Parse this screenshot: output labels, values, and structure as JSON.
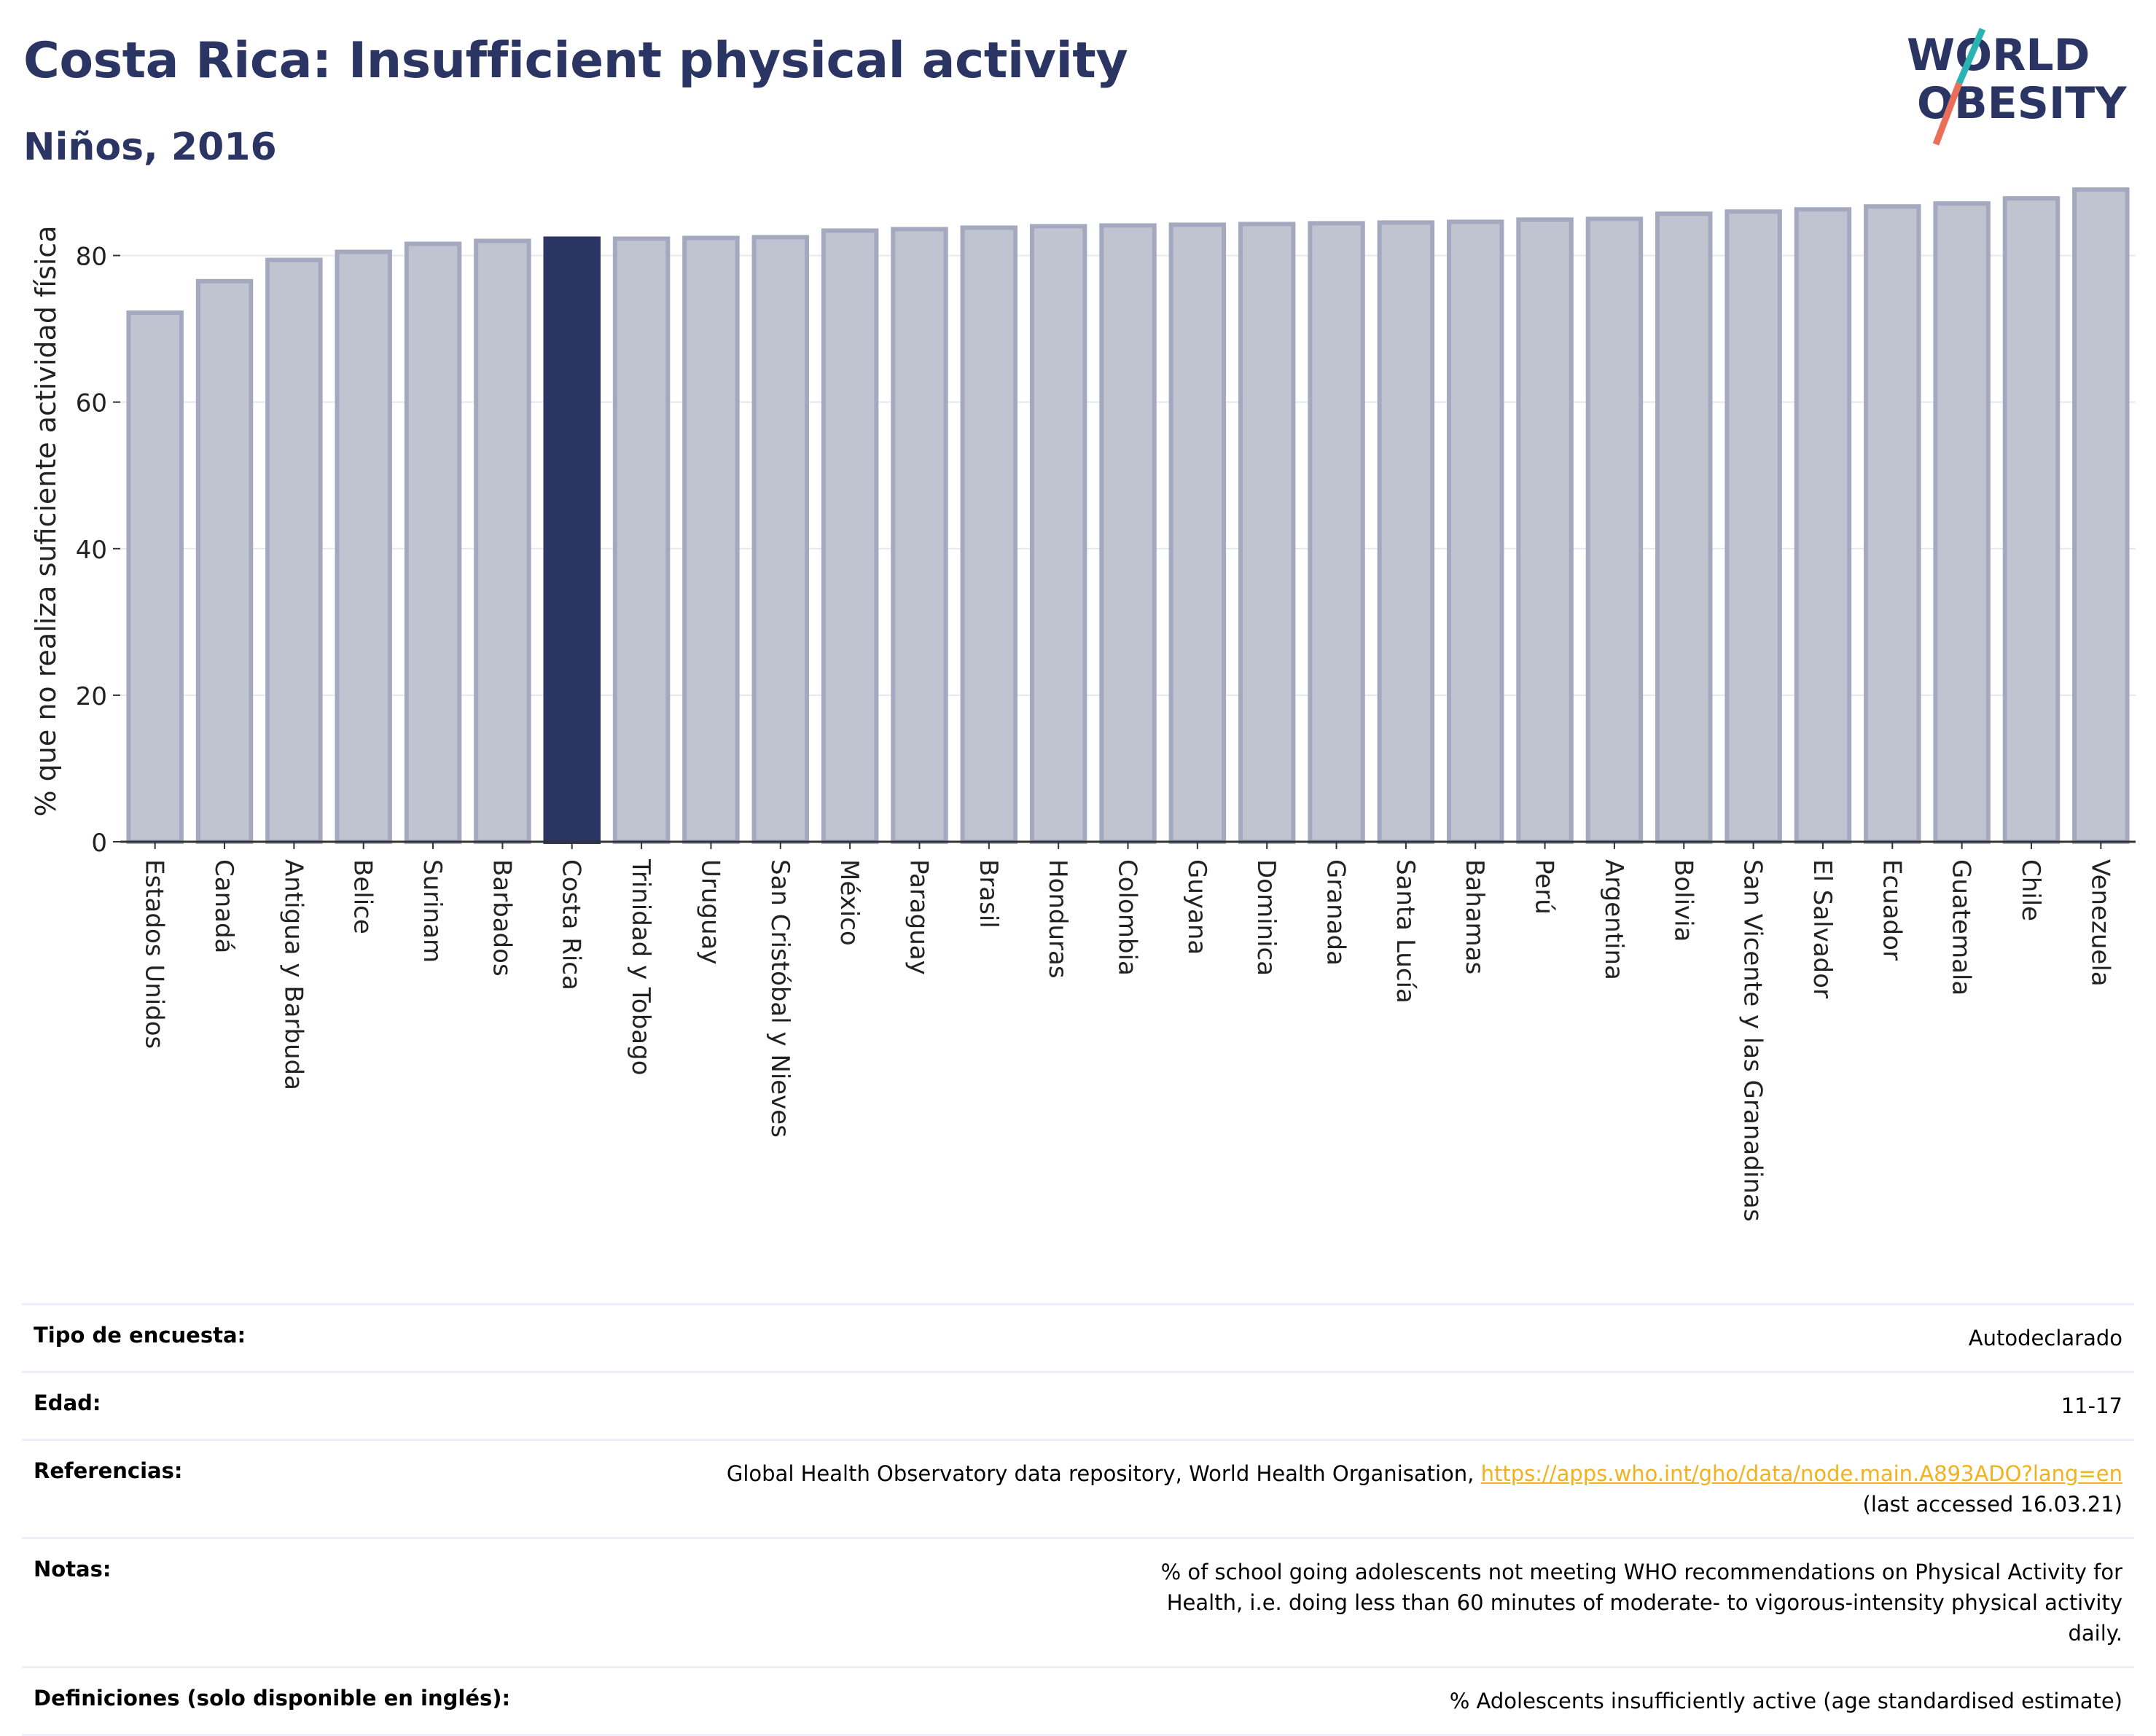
{
  "header": {
    "title": "Costa Rica: Insufficient physical activity",
    "subtitle": "Niños, 2016"
  },
  "logo": {
    "line1": "WORLD",
    "line2": "OBESITY",
    "colors": {
      "text": "#2b3564",
      "slash_top": "#2ab3b0",
      "slash_bottom": "#e8705a"
    }
  },
  "colors": {
    "bar_default": "#c0c3d0",
    "bar_default_border": "#a4a9bf",
    "bar_highlight": "#2b3564",
    "grid": "#e6e8ef",
    "axis": "#333333"
  },
  "chart_data": {
    "type": "bar",
    "title": "",
    "xlabel": "",
    "ylabel": "% que no realiza suficiente actividad física",
    "ylim": [
      0,
      91
    ],
    "yticks": [
      0,
      20,
      40,
      60,
      80
    ],
    "grid": true,
    "highlight": "Costa Rica",
    "categories": [
      "Estados Unidos",
      "Canadá",
      "Antigua y Barbuda",
      "Belice",
      "Surinam",
      "Barbados",
      "Costa Rica",
      "Trinidad y Tobago",
      "Uruguay",
      "San Cristóbal y Nieves",
      "México",
      "Paraguay",
      "Brasil",
      "Honduras",
      "Colombia",
      "Guyana",
      "Dominica",
      "Granada",
      "Santa Lucía",
      "Bahamas",
      "Perú",
      "Argentina",
      "Bolivia",
      "San Vicente y las Granadinas",
      "El Salvador",
      "Ecuador",
      "Guatemala",
      "Chile",
      "Venezuela"
    ],
    "values": [
      72.2,
      76.5,
      79.4,
      80.5,
      81.6,
      82.0,
      82.3,
      82.3,
      82.4,
      82.5,
      83.4,
      83.6,
      83.8,
      84.0,
      84.1,
      84.2,
      84.3,
      84.4,
      84.5,
      84.6,
      84.9,
      85.0,
      85.7,
      86.0,
      86.3,
      86.7,
      87.1,
      87.8,
      89.0
    ]
  },
  "meta": {
    "rows": [
      {
        "label": "Tipo de encuesta:",
        "value": "Autodeclarado"
      },
      {
        "label": "Edad:",
        "value": "11-17"
      },
      {
        "label": "Referencias:",
        "value_prefix": "Global Health Observatory data repository, World Health Organisation, ",
        "link": "https://apps.who.int/gho/data/node.main.A893ADO?lang=en",
        "value_suffix": "(last accessed 16.03.21)"
      },
      {
        "label": "Notas:",
        "value": "% of school going adolescents not meeting WHO recommendations on Physical Activity for Health, i.e. doing less than 60 minutes of moderate- to vigorous-intensity physical activity daily."
      },
      {
        "label": "Definiciones (solo disponible en inglés):",
        "value": "% Adolescents insufficiently active (age standardised estimate)"
      }
    ]
  }
}
